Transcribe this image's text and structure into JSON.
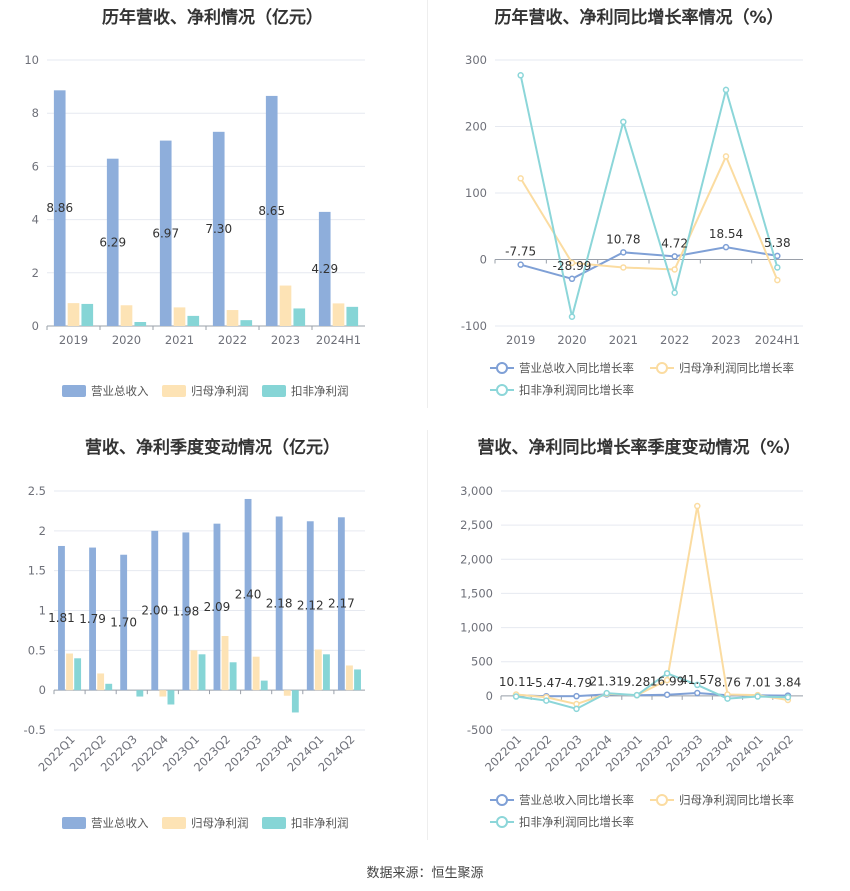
{
  "source": "数据来源：恒生聚源",
  "charts": [
    {
      "type": "bar",
      "title": "历年营收、净利情况（亿元）",
      "categories": [
        "2019",
        "2020",
        "2021",
        "2022",
        "2023",
        "2024H1"
      ],
      "yticks": [
        "10",
        "8",
        "6",
        "4",
        "2",
        "0"
      ],
      "ylim": [
        0,
        10
      ],
      "series": [
        {
          "name": "营业总收入",
          "color": "#8eaedb",
          "values": [
            8.86,
            6.29,
            6.97,
            7.3,
            8.65,
            4.29
          ],
          "labels": [
            "8.86",
            "6.29",
            "6.97",
            "7.30",
            "8.65",
            "4.29"
          ]
        },
        {
          "name": "归母净利润",
          "color": "#fde3b5",
          "values": [
            0.86,
            0.78,
            0.7,
            0.6,
            1.52,
            0.85
          ]
        },
        {
          "name": "扣非净利润",
          "color": "#86d5d6",
          "values": [
            0.83,
            0.15,
            0.38,
            0.22,
            0.66,
            0.72
          ]
        }
      ]
    },
    {
      "type": "line",
      "title": "历年营收、净利同比增长率情况（%）",
      "categories": [
        "2019",
        "2020",
        "2021",
        "2022",
        "2023",
        "2024H1"
      ],
      "yticks": [
        "300",
        "200",
        "100",
        "0",
        "-100"
      ],
      "ylim": [
        -100,
        300
      ],
      "series": [
        {
          "name": "营业总收入同比增长率",
          "color": "#7fa0d6",
          "values": [
            -7.75,
            -28.99,
            10.78,
            4.72,
            18.54,
            5.38
          ],
          "labels": [
            "-7.75",
            "-28.99",
            "10.78",
            "4.72",
            "18.54",
            "5.38"
          ]
        },
        {
          "name": "归母净利润同比增长率",
          "color": "#fbdca1",
          "values": [
            122,
            -5,
            -12,
            -15,
            155,
            -31
          ]
        },
        {
          "name": "扣非净利润同比增长率",
          "color": "#8cd6d9",
          "values": [
            277,
            -86,
            207,
            -50,
            255,
            -12
          ]
        }
      ]
    },
    {
      "type": "bar",
      "title": "营收、净利季度变动情况（亿元）",
      "categories": [
        "2022Q1",
        "2022Q2",
        "2022Q3",
        "2022Q4",
        "2023Q1",
        "2023Q2",
        "2023Q3",
        "2023Q4",
        "2024Q1",
        "2024Q2"
      ],
      "yticks": [
        "2.5",
        "2",
        "1.5",
        "1",
        "0.5",
        "0",
        "-0.5"
      ],
      "ylim": [
        -0.5,
        2.5
      ],
      "series": [
        {
          "name": "营业总收入",
          "color": "#8eaedb",
          "values": [
            1.81,
            1.79,
            1.7,
            2.0,
            1.98,
            2.09,
            2.4,
            2.18,
            2.12,
            2.17
          ],
          "labels": [
            "1.81",
            "1.79",
            "1.70",
            "2.00",
            "1.98",
            "2.09",
            "2.40",
            "2.18",
            "2.12",
            "2.17"
          ]
        },
        {
          "name": "归母净利润",
          "color": "#fde3b5",
          "values": [
            0.46,
            0.21,
            0.0,
            -0.08,
            0.5,
            0.68,
            0.42,
            -0.07,
            0.51,
            0.31
          ]
        },
        {
          "name": "扣非净利润",
          "color": "#86d5d6",
          "values": [
            0.4,
            0.08,
            -0.08,
            -0.18,
            0.45,
            0.35,
            0.12,
            -0.28,
            0.45,
            0.26
          ]
        }
      ]
    },
    {
      "type": "line",
      "title": "营收、净利同比增长率季度变动情况（%）",
      "categories": [
        "2022Q1",
        "2022Q2",
        "2022Q3",
        "2022Q4",
        "2023Q1",
        "2023Q2",
        "2023Q3",
        "2023Q4",
        "2024Q1",
        "2024Q2"
      ],
      "yticks": [
        "3,000",
        "2,500",
        "2,000",
        "1,500",
        "1,000",
        "500",
        "0",
        "-500"
      ],
      "ylim": [
        -500,
        3000
      ],
      "series": [
        {
          "name": "营业总收入同比增长率",
          "color": "#7fa0d6",
          "values": [
            10.11,
            -5.47,
            -4.79,
            21.31,
            9.28,
            16.99,
            41.57,
            8.76,
            7.01,
            3.84
          ],
          "labels": [
            "10.11",
            "-5.47",
            "-4.79",
            "21.31",
            "9.28",
            "16.99",
            "41.57",
            "8.76",
            "7.01",
            "3.84"
          ]
        },
        {
          "name": "归母净利润同比增长率",
          "color": "#fbdca1",
          "values": [
            20,
            -20,
            -120,
            30,
            10,
            230,
            2780,
            20,
            10,
            -60
          ]
        },
        {
          "name": "扣非净利润同比增长率",
          "color": "#8cd6d9",
          "values": [
            -10,
            -70,
            -190,
            40,
            10,
            330,
            160,
            -40,
            -10,
            -20
          ]
        }
      ]
    }
  ]
}
